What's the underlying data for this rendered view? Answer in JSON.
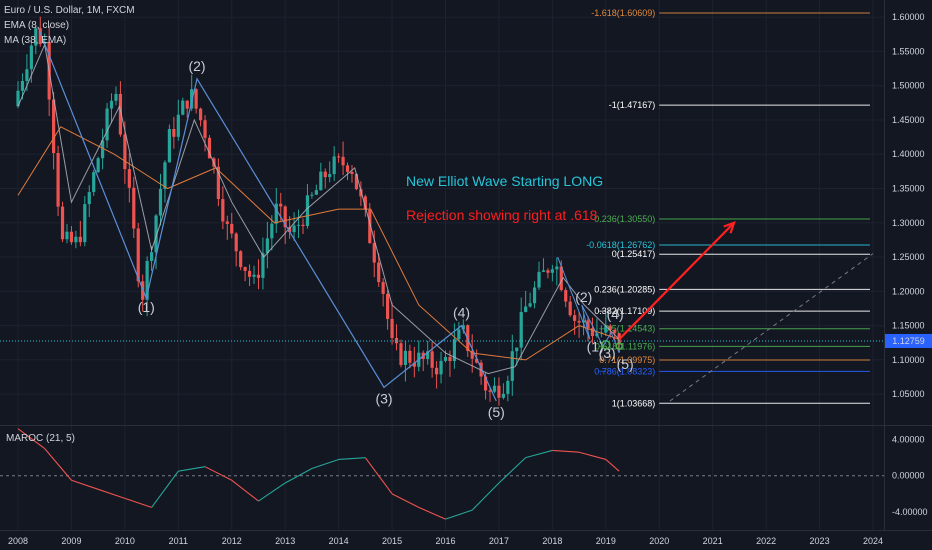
{
  "legend": {
    "title": "Euro / U.S. Dollar, 1M, FXCM",
    "ema": "EMA (8, close)",
    "ma": "MA (38, EMA)"
  },
  "maroc_label": "MAROC (21, 5)",
  "last_price": "1.12759",
  "colors": {
    "background": "#131722",
    "up": "#26a69a",
    "down": "#ef5350",
    "ema": "#b2b5be",
    "ma": "#e07a3c",
    "wave": "#5b8fd6",
    "price_line": "#26c6da",
    "maroc_green": "#26a69a",
    "maroc_red": "#ef5350",
    "note1": "#26c6da",
    "note2": "#ff1e1e",
    "arrow": "#ff2020"
  },
  "annotations": [
    {
      "text": "New Elliot Wave Starting LONG",
      "color": "#26c6da"
    },
    {
      "text": "Rejection showing right at .618",
      "color": "#ff1e1e"
    }
  ],
  "chart_data": [
    {
      "type": "candlestick",
      "title": "Euro / U.S. Dollar, 1M, FXCM",
      "x_axis": {
        "ticks": [
          "2008",
          "2009",
          "2010",
          "2011",
          "2012",
          "2013",
          "2014",
          "2015",
          "2016",
          "2017",
          "2018",
          "2019",
          "2020",
          "2021",
          "2022",
          "2023",
          "2024"
        ],
        "range": [
          2008.0,
          2024.0
        ]
      },
      "y_axis": {
        "ticks": [
          "1.05000",
          "1.10000",
          "1.15000",
          "1.20000",
          "1.25000",
          "1.30000",
          "1.35000",
          "1.40000",
          "1.45000",
          "1.50000",
          "1.55000",
          "1.60000"
        ],
        "range": [
          1.005,
          1.625
        ]
      },
      "price_path": [
        [
          2008.0,
          1.47
        ],
        [
          2008.4,
          1.58
        ],
        [
          2008.6,
          1.56
        ],
        [
          2008.9,
          1.27
        ],
        [
          2009.2,
          1.27
        ],
        [
          2009.9,
          1.5
        ],
        [
          2010.4,
          1.19
        ],
        [
          2010.9,
          1.42
        ],
        [
          2011.3,
          1.49
        ],
        [
          2011.6,
          1.43
        ],
        [
          2012.0,
          1.29
        ],
        [
          2012.5,
          1.21
        ],
        [
          2012.9,
          1.32
        ],
        [
          2013.2,
          1.28
        ],
        [
          2013.9,
          1.38
        ],
        [
          2014.3,
          1.39
        ],
        [
          2014.9,
          1.21
        ],
        [
          2015.1,
          1.11
        ],
        [
          2015.6,
          1.1
        ],
        [
          2016.0,
          1.09
        ],
        [
          2016.4,
          1.14
        ],
        [
          2016.9,
          1.05
        ],
        [
          2017.2,
          1.07
        ],
        [
          2017.6,
          1.18
        ],
        [
          2018.1,
          1.25
        ],
        [
          2018.5,
          1.16
        ],
        [
          2018.9,
          1.14
        ],
        [
          2019.1,
          1.14
        ],
        [
          2019.25,
          1.13
        ]
      ],
      "ema_path": [
        [
          2008.0,
          1.47
        ],
        [
          2008.5,
          1.56
        ],
        [
          2009.0,
          1.33
        ],
        [
          2009.9,
          1.47
        ],
        [
          2010.5,
          1.26
        ],
        [
          2011.3,
          1.45
        ],
        [
          2012.0,
          1.33
        ],
        [
          2012.6,
          1.25
        ],
        [
          2013.4,
          1.32
        ],
        [
          2014.3,
          1.38
        ],
        [
          2015.0,
          1.18
        ],
        [
          2016.0,
          1.11
        ],
        [
          2016.8,
          1.08
        ],
        [
          2017.3,
          1.09
        ],
        [
          2018.2,
          1.22
        ],
        [
          2018.6,
          1.18
        ],
        [
          2019.25,
          1.13
        ]
      ],
      "ma_path": [
        [
          2008.0,
          1.34
        ],
        [
          2008.8,
          1.44
        ],
        [
          2009.8,
          1.4
        ],
        [
          2010.8,
          1.35
        ],
        [
          2011.7,
          1.38
        ],
        [
          2012.8,
          1.3
        ],
        [
          2014.0,
          1.32
        ],
        [
          2014.6,
          1.32
        ],
        [
          2015.5,
          1.18
        ],
        [
          2016.5,
          1.11
        ],
        [
          2017.5,
          1.1
        ],
        [
          2018.5,
          1.15
        ],
        [
          2019.25,
          1.13
        ]
      ],
      "elliott_waves": [
        {
          "label": "(1)",
          "x": 2010.4,
          "y": 1.19
        },
        {
          "label": "(2)",
          "x": 2011.35,
          "y": 1.51
        },
        {
          "label": "(3)",
          "x": 2014.85,
          "y": 1.06
        },
        {
          "label": "(4)",
          "x": 2016.3,
          "y": 1.15
        },
        {
          "label": "(5)",
          "x": 2016.95,
          "y": 1.04
        },
        {
          "label": "(1)",
          "x": 2018.95,
          "y": 1.13
        },
        {
          "label": "(2)",
          "x": 2018.55,
          "y": 1.17
        },
        {
          "label": "(3)",
          "x": 2018.95,
          "y": 1.12
        },
        {
          "label": "(4)",
          "x": 2019.1,
          "y": 1.145
        },
        {
          "label": "(5)",
          "x": 2019.25,
          "y": 1.11
        }
      ],
      "fib_levels": [
        {
          "label": "-1.618(1.60609)",
          "value": 1.60609,
          "color": "#e08a3c"
        },
        {
          "label": "-1(1.47167)",
          "value": 1.47167,
          "color": "#ffffff"
        },
        {
          "label": "-0.236(1.30550)",
          "value": 1.3055,
          "color": "#4caf50"
        },
        {
          "label": "-0.0618(1.26762)",
          "value": 1.26762,
          "color": "#26c6da"
        },
        {
          "label": "0(1.25417)",
          "value": 1.25417,
          "color": "#ffffff"
        },
        {
          "label": "0.236(1.20285)",
          "value": 1.20285,
          "color": "#ffffff"
        },
        {
          "label": "0.382(1.17109)",
          "value": 1.17109,
          "color": "#ffffff"
        },
        {
          "label": "0.5(1.14543)",
          "value": 1.14543,
          "color": "#4caf50"
        },
        {
          "label": "0.618(1.11976)",
          "value": 1.11976,
          "color": "#4caf50"
        },
        {
          "label": "0.71(1.09975)",
          "value": 1.09975,
          "color": "#e08a3c"
        },
        {
          "label": "0.786(1.08323)",
          "value": 1.08323,
          "color": "#2962ff"
        },
        {
          "label": "1(1.03668)",
          "value": 1.03668,
          "color": "#ffffff"
        }
      ],
      "projection_arrow": {
        "from": [
          2019.25,
          1.13
        ],
        "to": [
          2021.4,
          1.3
        ]
      },
      "trend_line": {
        "from": [
          2020.2,
          1.04
        ],
        "to": [
          2024.0,
          1.255
        ]
      },
      "last_price": 1.12759
    },
    {
      "type": "line",
      "title": "MAROC (21, 5)",
      "y_axis": {
        "ticks": [
          "4.00000",
          "0.00000",
          "-4.00000"
        ],
        "range": [
          -6.0,
          5.5
        ]
      },
      "series": [
        {
          "values": [
            [
              2008.0,
              5.2
            ],
            [
              2008.5,
              3.0
            ],
            [
              2009.0,
              -0.5
            ],
            [
              2009.5,
              -1.5
            ],
            [
              2010.0,
              -2.5
            ],
            [
              2010.5,
              -3.5
            ],
            [
              2011.0,
              0.5
            ],
            [
              2011.5,
              1.0
            ],
            [
              2012.0,
              -0.5
            ],
            [
              2012.5,
              -2.8
            ],
            [
              2013.0,
              -0.8
            ],
            [
              2013.5,
              0.8
            ],
            [
              2014.0,
              1.8
            ],
            [
              2014.5,
              2.0
            ],
            [
              2015.0,
              -2.0
            ],
            [
              2015.5,
              -3.5
            ],
            [
              2016.0,
              -4.8
            ],
            [
              2016.5,
              -3.8
            ],
            [
              2017.0,
              -0.8
            ],
            [
              2017.5,
              2.0
            ],
            [
              2018.0,
              2.8
            ],
            [
              2018.5,
              2.6
            ],
            [
              2019.0,
              1.8
            ],
            [
              2019.25,
              0.5
            ]
          ]
        }
      ]
    }
  ]
}
